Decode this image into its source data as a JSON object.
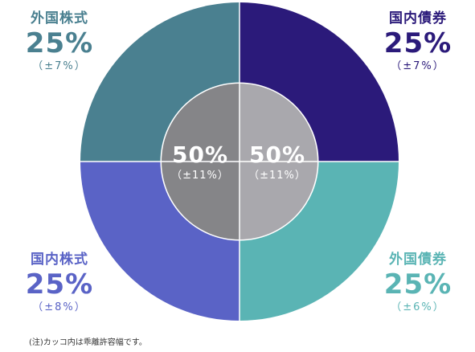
{
  "chart_data": {
    "type": "pie",
    "outer_ring": [
      {
        "label": "国内債券",
        "value": 25,
        "display": "25%",
        "tolerance": "（±7%）",
        "color": "#2b1a7a"
      },
      {
        "label": "外国債券",
        "value": 25,
        "display": "25%",
        "tolerance": "（±6%）",
        "color": "#5ab4b4"
      },
      {
        "label": "国内株式",
        "value": 25,
        "display": "25%",
        "tolerance": "（±8%）",
        "color": "#5a63c6"
      },
      {
        "label": "外国株式",
        "value": 25,
        "display": "25%",
        "tolerance": "（±7%）",
        "color": "#4a8090"
      }
    ],
    "inner_ring": [
      {
        "value": 50,
        "display": "50%",
        "tolerance": "（±11%）",
        "color": "#a9a8ad"
      },
      {
        "value": 50,
        "display": "50%",
        "tolerance": "（±11%）",
        "color": "#858588"
      }
    ]
  },
  "footnote": "(注)カッコ内は乖離許容幅です。"
}
